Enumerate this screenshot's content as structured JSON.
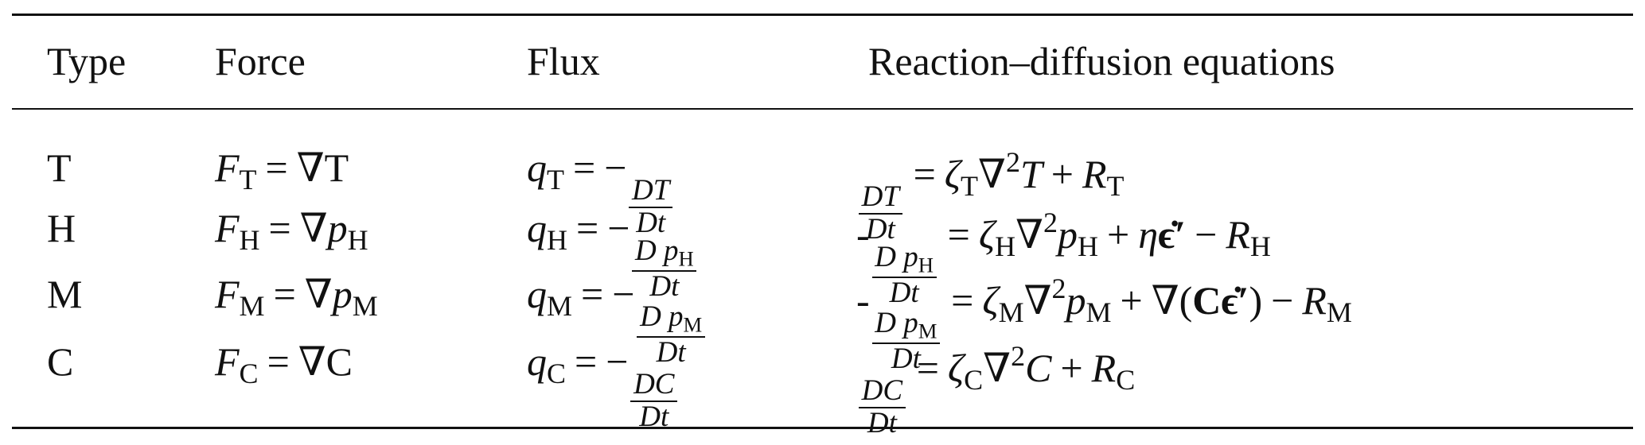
{
  "headers": [
    "Type",
    "Force",
    "Flux",
    "Reaction–diffusion equations"
  ],
  "rows": [
    {
      "type": "T",
      "force": [
        {
          "t": "i",
          "v": "F"
        },
        {
          "t": "sub",
          "v": "T"
        },
        {
          "t": "op",
          "v": "="
        },
        {
          "t": "r",
          "v": "∇T"
        }
      ],
      "flux": [
        {
          "t": "i",
          "v": "q"
        },
        {
          "t": "sub",
          "v": "T"
        },
        {
          "t": "op",
          "v": "="
        },
        {
          "t": "r",
          "v": "−"
        },
        {
          "t": "frac",
          "num": [
            {
              "t": "i",
              "v": "DT"
            }
          ],
          "den": [
            {
              "t": "i",
              "v": "Dt"
            }
          ]
        }
      ],
      "equation": [
        {
          "t": "frac",
          "num": [
            {
              "t": "i",
              "v": "DT"
            }
          ],
          "den": [
            {
              "t": "i",
              "v": "Dt"
            }
          ]
        },
        {
          "t": "op",
          "v": "="
        },
        {
          "t": "i",
          "v": "ζ"
        },
        {
          "t": "sub",
          "v": "T"
        },
        {
          "t": "r",
          "v": "∇"
        },
        {
          "t": "sup",
          "v": "2"
        },
        {
          "t": "i",
          "v": "T"
        },
        {
          "t": "op",
          "v": "+"
        },
        {
          "t": "i",
          "v": "R"
        },
        {
          "t": "sub",
          "v": "T"
        }
      ]
    },
    {
      "type": "H",
      "force": [
        {
          "t": "i",
          "v": "F"
        },
        {
          "t": "sub",
          "v": "H"
        },
        {
          "t": "op",
          "v": "="
        },
        {
          "t": "r",
          "v": "∇"
        },
        {
          "t": "i",
          "v": "p"
        },
        {
          "t": "sub",
          "v": "H"
        }
      ],
      "flux": [
        {
          "t": "i",
          "v": "q"
        },
        {
          "t": "sub",
          "v": "H"
        },
        {
          "t": "op",
          "v": "="
        },
        {
          "t": "r",
          "v": "−"
        },
        {
          "t": "frac",
          "num": [
            {
              "t": "i",
              "v": "D p"
            },
            {
              "t": "sub",
              "v": "H"
            }
          ],
          "den": [
            {
              "t": "i",
              "v": "Dt"
            }
          ]
        }
      ],
      "equation": [
        {
          "t": "r",
          "v": "-"
        },
        {
          "t": "frac",
          "num": [
            {
              "t": "i",
              "v": "D p"
            },
            {
              "t": "sub",
              "v": "H"
            }
          ],
          "den": [
            {
              "t": "i",
              "v": "Dt"
            }
          ]
        },
        {
          "t": "op",
          "v": "="
        },
        {
          "t": "i",
          "v": "ζ"
        },
        {
          "t": "sub",
          "v": "H"
        },
        {
          "t": "r",
          "v": "∇"
        },
        {
          "t": "sup",
          "v": "2"
        },
        {
          "t": "i",
          "v": "p"
        },
        {
          "t": "sub",
          "v": "H"
        },
        {
          "t": "op",
          "v": "+"
        },
        {
          "t": "i",
          "v": "η"
        },
        {
          "t": "b",
          "v": "ϵ̇′"
        },
        {
          "t": "op",
          "v": "−"
        },
        {
          "t": "i",
          "v": "R"
        },
        {
          "t": "sub",
          "v": "H"
        }
      ]
    },
    {
      "type": "M",
      "force": [
        {
          "t": "i",
          "v": "F"
        },
        {
          "t": "sub",
          "v": "M"
        },
        {
          "t": "op",
          "v": "="
        },
        {
          "t": "r",
          "v": "∇"
        },
        {
          "t": "i",
          "v": "p"
        },
        {
          "t": "sub",
          "v": "M"
        }
      ],
      "flux": [
        {
          "t": "i",
          "v": "q"
        },
        {
          "t": "sub",
          "v": "M"
        },
        {
          "t": "op",
          "v": "="
        },
        {
          "t": "r",
          "v": "−"
        },
        {
          "t": "frac",
          "num": [
            {
              "t": "i",
              "v": "D p"
            },
            {
              "t": "sub",
              "v": "M"
            }
          ],
          "den": [
            {
              "t": "i",
              "v": "Dt"
            }
          ]
        }
      ],
      "equation": [
        {
          "t": "r",
          "v": "-"
        },
        {
          "t": "frac",
          "num": [
            {
              "t": "i",
              "v": "D p"
            },
            {
              "t": "sub",
              "v": "M"
            }
          ],
          "den": [
            {
              "t": "i",
              "v": "Dt"
            }
          ]
        },
        {
          "t": "op",
          "v": "="
        },
        {
          "t": "i",
          "v": "ζ"
        },
        {
          "t": "sub",
          "v": "M"
        },
        {
          "t": "r",
          "v": "∇"
        },
        {
          "t": "sup",
          "v": "2"
        },
        {
          "t": "i",
          "v": "p"
        },
        {
          "t": "sub",
          "v": "M"
        },
        {
          "t": "op",
          "v": "+"
        },
        {
          "t": "r",
          "v": "∇("
        },
        {
          "t": "b",
          "v": "Cϵ̇′"
        },
        {
          "t": "r",
          "v": ")"
        },
        {
          "t": "op",
          "v": "−"
        },
        {
          "t": "i",
          "v": "R"
        },
        {
          "t": "sub",
          "v": "M"
        }
      ]
    },
    {
      "type": "C",
      "force": [
        {
          "t": "i",
          "v": "F"
        },
        {
          "t": "sub",
          "v": "C"
        },
        {
          "t": "op",
          "v": "="
        },
        {
          "t": "r",
          "v": "∇C"
        }
      ],
      "flux": [
        {
          "t": "i",
          "v": "q"
        },
        {
          "t": "sub",
          "v": "C"
        },
        {
          "t": "op",
          "v": "="
        },
        {
          "t": "r",
          "v": "−"
        },
        {
          "t": "frac",
          "num": [
            {
              "t": "i",
              "v": "DC"
            }
          ],
          "den": [
            {
              "t": "i",
              "v": "Dt"
            }
          ]
        }
      ],
      "equation": [
        {
          "t": "frac",
          "num": [
            {
              "t": "i",
              "v": "DC"
            }
          ],
          "den": [
            {
              "t": "i",
              "v": "Dt"
            }
          ]
        },
        {
          "t": "op",
          "v": "="
        },
        {
          "t": "i",
          "v": "ζ"
        },
        {
          "t": "sub",
          "v": "C"
        },
        {
          "t": "r",
          "v": "∇"
        },
        {
          "t": "sup",
          "v": "2"
        },
        {
          "t": "i",
          "v": "C"
        },
        {
          "t": "op",
          "v": "+"
        },
        {
          "t": "i",
          "v": "R"
        },
        {
          "t": "sub",
          "v": "C"
        }
      ]
    }
  ]
}
